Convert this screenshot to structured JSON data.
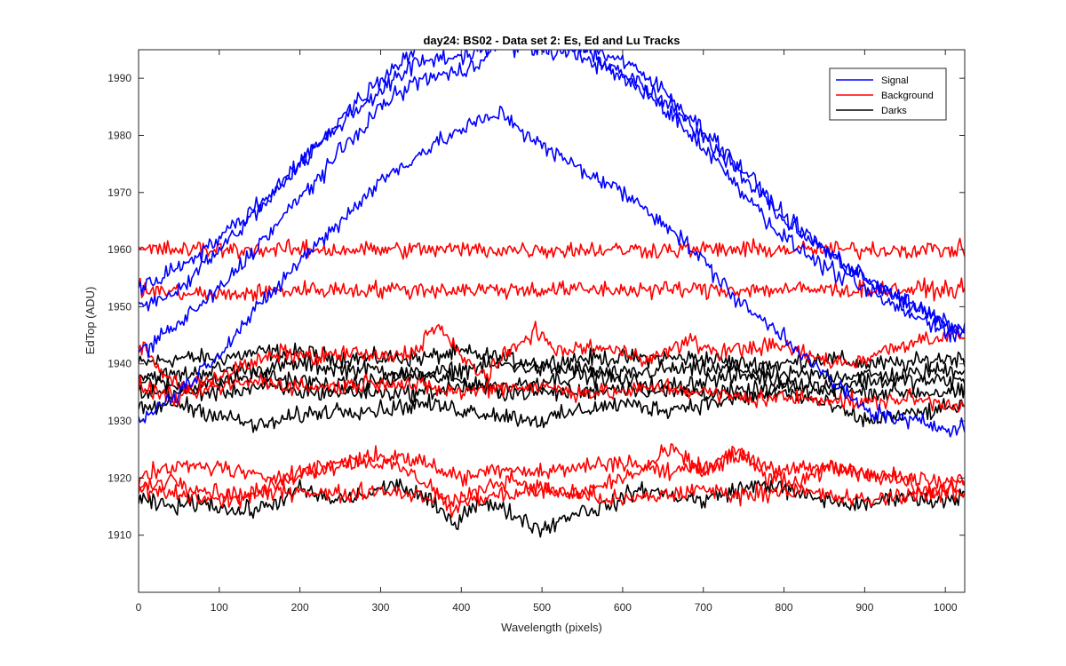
{
  "chart_data": {
    "type": "line",
    "title": "day24: BS02 - Data set 2: Es, Ed and Lu Tracks",
    "xlabel": "Wavelength (pixels)",
    "ylabel": "EdTop (ADU)",
    "xlim": [
      0,
      1024
    ],
    "ylim": [
      1900,
      1995
    ],
    "xticks": [
      0,
      100,
      200,
      300,
      400,
      500,
      600,
      700,
      800,
      900,
      1000
    ],
    "yticks": [
      1910,
      1920,
      1930,
      1940,
      1950,
      1960,
      1970,
      1980,
      1990
    ],
    "grid": false,
    "legend": {
      "position": "top-right",
      "entries": [
        {
          "label": "Signal",
          "color": "#0000ff"
        },
        {
          "label": "Background",
          "color": "#ff0000"
        },
        {
          "label": "Darks",
          "color": "#000000"
        }
      ]
    },
    "colors": {
      "Signal": "#0000ff",
      "Background": "#ff0000",
      "Darks": "#000000"
    },
    "noise_amplitude_adu": 1.5,
    "series": [
      {
        "group": "Signal",
        "x": [
          0,
          50,
          100,
          150,
          200,
          250,
          300,
          350,
          400,
          450,
          500,
          550,
          600,
          650,
          700,
          750,
          800,
          850,
          900,
          950,
          1000,
          1024
        ],
        "y": [
          1950,
          1953,
          1960,
          1967,
          1975,
          1983,
          1990,
          1996,
          1998,
          1998,
          1997,
          1995,
          1991,
          1986,
          1980,
          1973,
          1965,
          1960,
          1955,
          1951,
          1947,
          1946
        ]
      },
      {
        "group": "Signal",
        "x": [
          0,
          50,
          100,
          150,
          200,
          250,
          300,
          350,
          400,
          450,
          500,
          550,
          600,
          650,
          700,
          750,
          800,
          850,
          900,
          950,
          1000,
          1024
        ],
        "y": [
          1953,
          1957,
          1962,
          1968,
          1975,
          1982,
          1988,
          1993,
          1994,
          1996,
          1997,
          1996,
          1993,
          1988,
          1981,
          1974,
          1966,
          1960,
          1955,
          1951,
          1947,
          1946
        ]
      },
      {
        "group": "Signal",
        "x": [
          0,
          50,
          100,
          150,
          200,
          250,
          300,
          350,
          400,
          450,
          500,
          550,
          600,
          650,
          700,
          750,
          800,
          850,
          900,
          950,
          1000,
          1024
        ],
        "y": [
          1942,
          1947,
          1953,
          1961,
          1969,
          1977,
          1985,
          1990,
          1991,
          1996,
          1995,
          1994,
          1990,
          1985,
          1978,
          1970,
          1962,
          1957,
          1953,
          1949,
          1946,
          1945
        ]
      },
      {
        "group": "Signal",
        "x": [
          0,
          50,
          100,
          150,
          200,
          250,
          300,
          350,
          400,
          450,
          500,
          550,
          600,
          650,
          700,
          750,
          800,
          850,
          900,
          950,
          1000,
          1024
        ],
        "y": [
          1930,
          1935,
          1942,
          1950,
          1958,
          1965,
          1972,
          1977,
          1981,
          1984,
          1978,
          1974,
          1970,
          1965,
          1958,
          1950,
          1945,
          1938,
          1932,
          1930,
          1929,
          1929
        ]
      },
      {
        "group": "Background",
        "x": [
          0,
          100,
          200,
          300,
          400,
          500,
          600,
          700,
          800,
          900,
          1000,
          1024
        ],
        "y": [
          1960,
          1960,
          1960,
          1960,
          1960,
          1960,
          1960,
          1960,
          1960,
          1960,
          1960,
          1960
        ]
      },
      {
        "group": "Background",
        "x": [
          0,
          100,
          200,
          300,
          400,
          500,
          600,
          700,
          800,
          900,
          1000,
          1024
        ],
        "y": [
          1953,
          1952,
          1953,
          1953,
          1953,
          1953,
          1953,
          1953,
          1953,
          1953,
          1953,
          1953
        ]
      },
      {
        "group": "Background",
        "x": [
          0,
          30,
          60,
          100,
          140,
          180,
          220,
          260,
          300,
          340,
          370,
          400,
          430,
          460,
          490,
          520,
          560,
          600,
          640,
          680,
          720,
          760,
          800,
          840,
          880,
          920,
          960,
          1000,
          1024
        ],
        "y": [
          1944,
          1938,
          1936,
          1938,
          1940,
          1942,
          1941,
          1942,
          1941,
          1942,
          1947,
          1941,
          1938,
          1942,
          1946,
          1942,
          1943,
          1942,
          1941,
          1944,
          1942,
          1943,
          1943,
          1941,
          1940,
          1942,
          1944,
          1945,
          1945
        ]
      },
      {
        "group": "Background",
        "x": [
          0,
          50,
          100,
          150,
          200,
          250,
          300,
          350,
          400,
          450,
          500,
          550,
          600,
          650,
          700,
          750,
          800,
          850,
          900,
          950,
          1000,
          1024
        ],
        "y": [
          1936,
          1934,
          1936,
          1937,
          1936,
          1936,
          1937,
          1936,
          1935,
          1936,
          1936,
          1935,
          1935,
          1936,
          1935,
          1934,
          1934,
          1934,
          1933,
          1934,
          1933,
          1933
        ]
      },
      {
        "group": "Background",
        "x": [
          0,
          50,
          100,
          150,
          200,
          250,
          300,
          350,
          400,
          450,
          500,
          550,
          600,
          650,
          700,
          750,
          800,
          850,
          900,
          950,
          1000,
          1024
        ],
        "y": [
          1920,
          1922,
          1922,
          1920,
          1921,
          1923,
          1924,
          1923,
          1920,
          1922,
          1921,
          1922,
          1923,
          1921,
          1922,
          1924,
          1921,
          1922,
          1921,
          1920,
          1919,
          1920
        ]
      },
      {
        "group": "Background",
        "x": [
          0,
          40,
          80,
          120,
          160,
          200,
          240,
          280,
          320,
          360,
          390,
          420,
          460,
          500,
          540,
          580,
          620,
          660,
          700,
          740,
          780,
          820,
          860,
          900,
          940,
          980,
          1024
        ],
        "y": [
          1918,
          1920,
          1918,
          1917,
          1918,
          1921,
          1922,
          1923,
          1922,
          1919,
          1914,
          1918,
          1920,
          1918,
          1917,
          1919,
          1921,
          1925,
          1921,
          1925,
          1920,
          1919,
          1922,
          1921,
          1920,
          1917,
          1919
        ]
      },
      {
        "group": "Background",
        "x": [
          0,
          50,
          100,
          150,
          200,
          250,
          300,
          350,
          400,
          450,
          500,
          550,
          600,
          650,
          700,
          750,
          800,
          850,
          900,
          950,
          1000,
          1024
        ],
        "y": [
          1918,
          1917,
          1916,
          1917,
          1918,
          1917,
          1918,
          1917,
          1916,
          1917,
          1918,
          1917,
          1916,
          1917,
          1918,
          1917,
          1918,
          1917,
          1916,
          1917,
          1918,
          1917
        ]
      },
      {
        "group": "Darks",
        "x": [
          0,
          50,
          100,
          150,
          200,
          250,
          300,
          350,
          400,
          450,
          500,
          550,
          600,
          650,
          700,
          750,
          800,
          850,
          900,
          950,
          1000,
          1024
        ],
        "y": [
          1940,
          1941,
          1941,
          1942,
          1942,
          1941,
          1941,
          1941,
          1942,
          1941,
          1940,
          1941,
          1941,
          1941,
          1941,
          1940,
          1940,
          1941,
          1940,
          1940,
          1941,
          1941
        ]
      },
      {
        "group": "Darks",
        "x": [
          0,
          50,
          100,
          150,
          200,
          250,
          300,
          350,
          400,
          450,
          500,
          550,
          600,
          650,
          700,
          750,
          800,
          850,
          900,
          950,
          1000,
          1024
        ],
        "y": [
          1938,
          1938,
          1939,
          1939,
          1940,
          1939,
          1939,
          1938,
          1939,
          1940,
          1939,
          1939,
          1938,
          1939,
          1939,
          1939,
          1938,
          1938,
          1938,
          1938,
          1939,
          1939
        ]
      },
      {
        "group": "Darks",
        "x": [
          0,
          50,
          100,
          150,
          200,
          250,
          300,
          350,
          400,
          450,
          500,
          550,
          600,
          650,
          700,
          750,
          800,
          850,
          900,
          950,
          1000,
          1024
        ],
        "y": [
          1937,
          1936,
          1937,
          1938,
          1937,
          1936,
          1937,
          1938,
          1937,
          1936,
          1937,
          1938,
          1937,
          1936,
          1937,
          1938,
          1937,
          1936,
          1937,
          1937,
          1937,
          1937
        ]
      },
      {
        "group": "Darks",
        "x": [
          0,
          50,
          100,
          150,
          200,
          250,
          300,
          350,
          400,
          450,
          500,
          550,
          600,
          650,
          700,
          750,
          800,
          850,
          900,
          950,
          1000,
          1024
        ],
        "y": [
          1935,
          1935,
          1935,
          1936,
          1935,
          1935,
          1935,
          1935,
          1936,
          1935,
          1935,
          1935,
          1936,
          1935,
          1935,
          1935,
          1936,
          1935,
          1935,
          1935,
          1935,
          1935
        ]
      },
      {
        "group": "Darks",
        "x": [
          0,
          50,
          100,
          150,
          200,
          250,
          300,
          350,
          400,
          450,
          500,
          550,
          600,
          650,
          700,
          750,
          800,
          850,
          900,
          950,
          1000,
          1024
        ],
        "y": [
          1932,
          1933,
          1931,
          1929,
          1931,
          1932,
          1932,
          1933,
          1932,
          1931,
          1930,
          1932,
          1933,
          1932,
          1933,
          1934,
          1935,
          1933,
          1930,
          1931,
          1932,
          1933
        ]
      },
      {
        "group": "Darks",
        "x": [
          0,
          40,
          80,
          120,
          160,
          200,
          240,
          280,
          320,
          360,
          390,
          420,
          460,
          500,
          540,
          580,
          620,
          660,
          700,
          740,
          780,
          820,
          860,
          900,
          940,
          980,
          1024
        ],
        "y": [
          1916,
          1915,
          1916,
          1914,
          1915,
          1918,
          1916,
          1917,
          1919,
          1916,
          1912,
          1916,
          1914,
          1911,
          1914,
          1915,
          1918,
          1917,
          1916,
          1918,
          1919,
          1917,
          1916,
          1915,
          1917,
          1916,
          1917
        ]
      }
    ]
  }
}
